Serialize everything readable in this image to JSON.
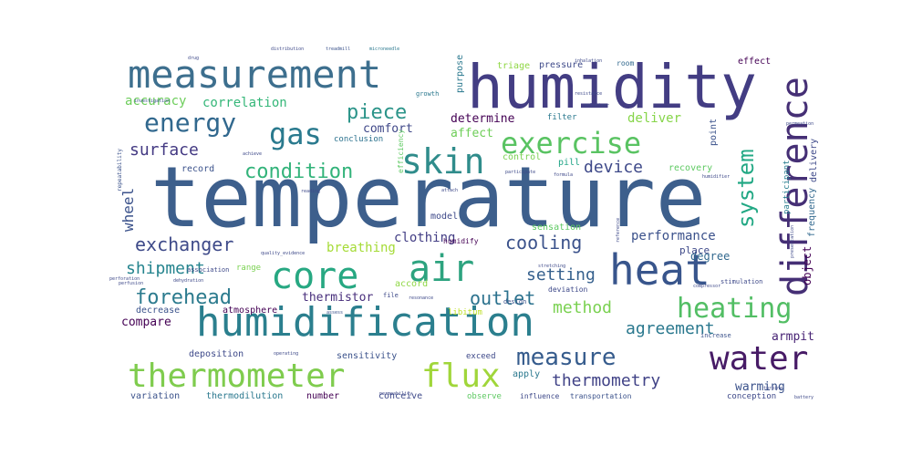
{
  "words": [
    {
      "text": "temperature",
      "color": "#3d5f8c"
    },
    {
      "text": "humidity",
      "color": "#433d83"
    },
    {
      "text": "measurement",
      "color": "#3d6f8e"
    },
    {
      "text": "humidification",
      "color": "#2b7f8e"
    },
    {
      "text": "heat",
      "color": "#38558c"
    },
    {
      "text": "difference",
      "color": "#452f75"
    },
    {
      "text": "air",
      "color": "#2da37f"
    },
    {
      "text": "core",
      "color": "#27a882"
    },
    {
      "text": "skin",
      "color": "#2f8c8b"
    },
    {
      "text": "exercise",
      "color": "#59c362"
    },
    {
      "text": "thermometer",
      "color": "#7fcc4e"
    },
    {
      "text": "flux",
      "color": "#a0d63a"
    },
    {
      "text": "water",
      "color": "#471b66"
    },
    {
      "text": "heating",
      "color": "#52be64"
    },
    {
      "text": "measure",
      "color": "#365c8d"
    },
    {
      "text": "gas",
      "color": "#2a7a8e"
    },
    {
      "text": "energy",
      "color": "#31688e"
    },
    {
      "text": "condition",
      "color": "#32b37a"
    },
    {
      "text": "piece",
      "color": "#2b9489"
    },
    {
      "text": "system",
      "color": "#22a884"
    },
    {
      "text": "exchanger",
      "color": "#3e4a89"
    },
    {
      "text": "cooling",
      "color": "#3b528b"
    },
    {
      "text": "forehead",
      "color": "#2c7b8e"
    },
    {
      "text": "setting",
      "color": "#35608d"
    },
    {
      "text": "outlet",
      "color": "#2c728e"
    },
    {
      "text": "method",
      "color": "#7ad151"
    },
    {
      "text": "agreement",
      "color": "#2a788e"
    },
    {
      "text": "thermometry",
      "color": "#414387"
    },
    {
      "text": "surface",
      "color": "#443a83"
    },
    {
      "text": "device",
      "color": "#3e4989"
    },
    {
      "text": "shipment",
      "color": "#25848e"
    },
    {
      "text": "clothing",
      "color": "#433e85"
    },
    {
      "text": "breathing",
      "color": "#a5db36"
    },
    {
      "text": "performance",
      "color": "#3b518b"
    },
    {
      "text": "wheel",
      "color": "#3b528b"
    },
    {
      "text": "correlation",
      "color": "#35b779"
    },
    {
      "text": "accuracy",
      "color": "#6ccd5a"
    },
    {
      "text": "determine",
      "color": "#440154"
    },
    {
      "text": "comfort",
      "color": "#3f4788"
    },
    {
      "text": "affect",
      "color": "#6ece58"
    },
    {
      "text": "deliver",
      "color": "#86d549"
    },
    {
      "text": "filter",
      "color": "#2a788e"
    },
    {
      "text": "thermistor",
      "color": "#472d7b"
    },
    {
      "text": "compare",
      "color": "#440154"
    },
    {
      "text": "warming",
      "color": "#3b528b"
    },
    {
      "text": "armpit",
      "color": "#482475"
    },
    {
      "text": "degree",
      "color": "#31688e"
    },
    {
      "text": "place",
      "color": "#3e4989"
    },
    {
      "text": "recovery",
      "color": "#5ec962"
    },
    {
      "text": "frequency",
      "color": "#31688e"
    },
    {
      "text": "delivery",
      "color": "#3e4989"
    },
    {
      "text": "participant",
      "color": "#287d8e"
    },
    {
      "text": "object",
      "color": "#440154"
    },
    {
      "text": "purpose",
      "color": "#2a788e"
    },
    {
      "text": "pressure",
      "color": "#3e4a89"
    },
    {
      "text": "triage",
      "color": "#8fd744"
    },
    {
      "text": "room",
      "color": "#31688e"
    },
    {
      "text": "effect",
      "color": "#440154"
    },
    {
      "text": "record",
      "color": "#3b528b"
    },
    {
      "text": "sensation",
      "color": "#5ec962"
    },
    {
      "text": "humidify",
      "color": "#440154"
    },
    {
      "text": "model",
      "color": "#3e4989"
    },
    {
      "text": "control",
      "color": "#7ad151"
    },
    {
      "text": "pill",
      "color": "#20a486"
    },
    {
      "text": "point",
      "color": "#3b528b"
    },
    {
      "text": "conclusion",
      "color": "#2c728e"
    },
    {
      "text": "range",
      "color": "#7ad151"
    },
    {
      "text": "accord",
      "color": "#8fd744"
    },
    {
      "text": "atmosphere",
      "color": "#440154"
    },
    {
      "text": "decrease",
      "color": "#3b528b"
    },
    {
      "text": "deposition",
      "color": "#3e4989"
    },
    {
      "text": "sensitivity",
      "color": "#3b528b"
    },
    {
      "text": "exceed",
      "color": "#3e4989"
    },
    {
      "text": "apply",
      "color": "#2a788e"
    },
    {
      "text": "variation",
      "color": "#3b528b"
    },
    {
      "text": "thermodilution",
      "color": "#2a788e"
    },
    {
      "text": "number",
      "color": "#440154"
    },
    {
      "text": "conceive",
      "color": "#3e4989"
    },
    {
      "text": "observe",
      "color": "#5ec962"
    },
    {
      "text": "influence",
      "color": "#3e4989"
    },
    {
      "text": "transportation",
      "color": "#3b528b"
    },
    {
      "text": "conception",
      "color": "#3e4989"
    },
    {
      "text": "libitum",
      "color": "#bddf26"
    },
    {
      "text": "deviation",
      "color": "#3e4989"
    },
    {
      "text": "file",
      "color": "#3e4989"
    },
    {
      "text": "design",
      "color": "#3b528b"
    },
    {
      "text": "growth",
      "color": "#2a788e"
    },
    {
      "text": "efficiency",
      "color": "#5ec962"
    },
    {
      "text": "distribution",
      "color": "#3e4989"
    },
    {
      "text": "treadmill",
      "color": "#3b528b"
    },
    {
      "text": "microneedle",
      "color": "#2a788e"
    },
    {
      "text": "association",
      "color": "#3e4989"
    },
    {
      "text": "compressor",
      "color": "#3e4989"
    },
    {
      "text": "stimulation",
      "color": "#3e4989"
    },
    {
      "text": "increase",
      "color": "#3b528b"
    },
    {
      "text": "turbine",
      "color": "#3e4989"
    },
    {
      "text": "battery",
      "color": "#3e4989"
    },
    {
      "text": "repeatability",
      "color": "#3b528b"
    },
    {
      "text": "humidifier",
      "color": "#3e4989"
    },
    {
      "text": "permeability",
      "color": "#3e4989"
    },
    {
      "text": "investigation",
      "color": "#3b528b"
    },
    {
      "text": "perfusion",
      "color": "#3e4989"
    },
    {
      "text": "dehydration",
      "color": "#3e4989"
    },
    {
      "text": "operating",
      "color": "#3e4989"
    },
    {
      "text": "quality_evidence",
      "color": "#3e4989"
    },
    {
      "text": "resistance",
      "color": "#3e4989"
    },
    {
      "text": "volunteer",
      "color": "#3e4989"
    },
    {
      "text": "permeation",
      "color": "#3e4989"
    },
    {
      "text": "presentation",
      "color": "#3e4989"
    },
    {
      "text": "reference",
      "color": "#3e4989"
    },
    {
      "text": "stretching",
      "color": "#3e4989"
    },
    {
      "text": "perforation",
      "color": "#3e4989"
    },
    {
      "text": "assess",
      "color": "#3b528b"
    },
    {
      "text": "achieve",
      "color": "#3e4989"
    },
    {
      "text": "drug",
      "color": "#3e4989"
    },
    {
      "text": "participate",
      "color": "#3e4989"
    },
    {
      "text": "formula",
      "color": "#3e4989"
    },
    {
      "text": "attach",
      "color": "#3e4989"
    },
    {
      "text": "inhalation",
      "color": "#3e4989"
    },
    {
      "text": "resonance",
      "color": "#3e4989"
    },
    {
      "text": "reading",
      "color": "#3e4989"
    },
    {
      "text": "saturation",
      "color": "#3e4989"
    }
  ]
}
